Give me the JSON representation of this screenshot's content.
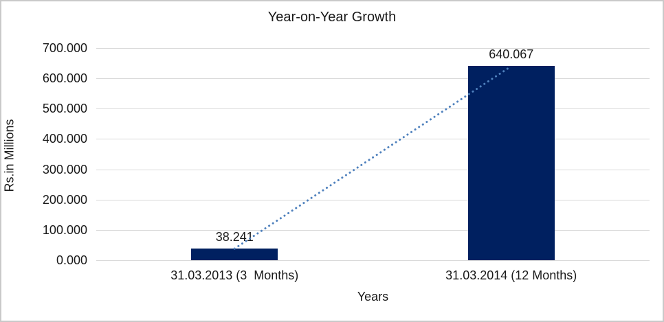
{
  "chart_data": {
    "type": "bar",
    "title": "Year-on-Year Growth",
    "xlabel": "Years",
    "ylabel": "Rs.in Millions",
    "categories": [
      "31.03.2013 (3  Months)",
      "31.03.2014 (12 Months)"
    ],
    "values": [
      38.241,
      640.067
    ],
    "data_labels": [
      "38.241",
      "640.067"
    ],
    "ylim": [
      0,
      700
    ],
    "yticks": [
      {
        "value": 0,
        "label": "0.000"
      },
      {
        "value": 100,
        "label": "100.000"
      },
      {
        "value": 200,
        "label": "200.000"
      },
      {
        "value": 300,
        "label": "300.000"
      },
      {
        "value": 400,
        "label": "400.000"
      },
      {
        "value": 500,
        "label": "500.000"
      },
      {
        "value": 600,
        "label": "600.000"
      },
      {
        "value": 700,
        "label": "700.000"
      }
    ],
    "grid": true,
    "legend": "none",
    "trendline": {
      "style": "dotted",
      "from": {
        "category_index": 0,
        "value": 38.241
      },
      "to": {
        "category_index": 1,
        "value": 640.067
      }
    },
    "styles": {
      "bar_color": "#002060",
      "trendline_color": "#4F81BD",
      "gridline_color": "#D9D9D9",
      "text_color": "#1A1A1A",
      "chart_border_color": "#C9C9C9",
      "background_color": "#FFFFFF"
    }
  }
}
